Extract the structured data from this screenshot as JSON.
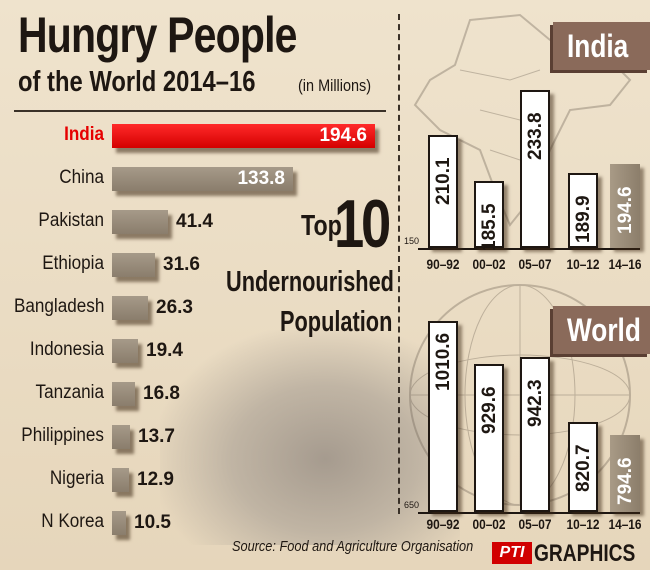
{
  "title": "Hungry People",
  "subtitle": "of the World   2014–16",
  "unit": "(in Millions)",
  "highlight_color": "#e60000",
  "center_label": {
    "word": "Top",
    "number": "10",
    "line2": "Undernourished",
    "line3": "Population"
  },
  "source": "Source: Food and Agriculture Organisation",
  "brand": {
    "logo": "PTI",
    "text": "GRAPHICS"
  },
  "chart_data": [
    {
      "type": "bar",
      "orientation": "horizontal",
      "categories": [
        "India",
        "China",
        "Pakistan",
        "Ethiopia",
        "Bangladesh",
        "Indonesia",
        "Tanzania",
        "Philippines",
        "Nigeria",
        "N Korea"
      ],
      "values": [
        194.6,
        133.8,
        41.4,
        31.6,
        26.3,
        19.4,
        16.8,
        13.7,
        12.9,
        10.5
      ],
      "highlight": "India"
    },
    {
      "type": "bar",
      "title": "India",
      "categories": [
        "90–92",
        "00–02",
        "05–07",
        "10–12",
        "14–16"
      ],
      "values": [
        210.1,
        185.5,
        233.8,
        189.9,
        194.6
      ],
      "baseline": 150,
      "baseline_label": "150",
      "ylim": [
        150,
        250
      ]
    },
    {
      "type": "bar",
      "title": "World",
      "categories": [
        "90–92",
        "00–02",
        "05–07",
        "10–12",
        "14–16"
      ],
      "values": [
        1010.6,
        929.6,
        942.3,
        820.7,
        794.6
      ],
      "baseline": 650,
      "baseline_label": "650",
      "ylim": [
        650,
        1050
      ]
    }
  ]
}
